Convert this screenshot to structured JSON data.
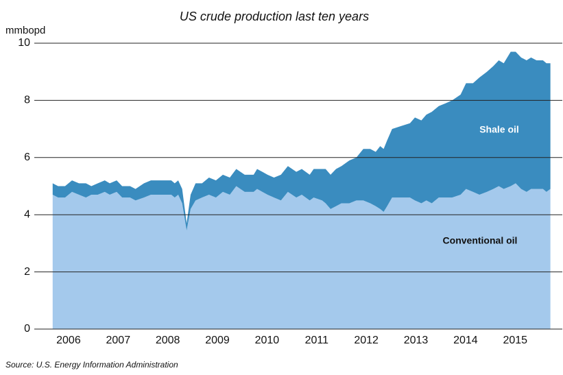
{
  "chart_data": {
    "type": "stacked_area",
    "title": "US crude production last ten years",
    "y_label": "mmbopd",
    "source": "Source: U.S. Energy Information Administration",
    "x": [
      2005.68,
      2005.79,
      2005.93,
      2006.07,
      2006.21,
      2006.35,
      2006.46,
      2006.59,
      2006.73,
      2006.83,
      2006.97,
      2007.08,
      2007.24,
      2007.35,
      2007.52,
      2007.66,
      2007.86,
      2008.07,
      2008.14,
      2008.21,
      2008.29,
      2008.38,
      2008.46,
      2008.56,
      2008.69,
      2008.83,
      2008.97,
      2009.11,
      2009.25,
      2009.38,
      2009.55,
      2009.73,
      2009.8,
      2010.01,
      2010.14,
      2010.28,
      2010.42,
      2010.59,
      2010.7,
      2010.86,
      2010.94,
      2011.11,
      2011.18,
      2011.28,
      2011.39,
      2011.5,
      2011.66,
      2011.8,
      2011.94,
      2012.08,
      2012.19,
      2012.28,
      2012.35,
      2012.42,
      2012.52,
      2012.7,
      2012.88,
      2012.98,
      2013.11,
      2013.21,
      2013.32,
      2013.46,
      2013.6,
      2013.73,
      2013.9,
      2014.01,
      2014.15,
      2014.28,
      2014.43,
      2014.56,
      2014.67,
      2014.77,
      2014.91,
      2015.01,
      2015.12,
      2015.23,
      2015.32,
      2015.43,
      2015.56,
      2015.63,
      2015.71
    ],
    "series": [
      {
        "name": "Conventional oil",
        "color": "#a4c9ec",
        "values": [
          4.7,
          4.6,
          4.6,
          4.8,
          4.7,
          4.6,
          4.7,
          4.7,
          4.8,
          4.7,
          4.8,
          4.6,
          4.6,
          4.5,
          4.6,
          4.7,
          4.7,
          4.7,
          4.6,
          4.7,
          4.4,
          3.45,
          4.2,
          4.5,
          4.6,
          4.7,
          4.6,
          4.8,
          4.7,
          5.0,
          4.8,
          4.8,
          4.9,
          4.7,
          4.6,
          4.5,
          4.8,
          4.6,
          4.7,
          4.5,
          4.6,
          4.5,
          4.4,
          4.2,
          4.3,
          4.4,
          4.4,
          4.5,
          4.5,
          4.4,
          4.3,
          4.2,
          4.1,
          4.3,
          4.6,
          4.6,
          4.6,
          4.5,
          4.4,
          4.5,
          4.4,
          4.6,
          4.6,
          4.6,
          4.7,
          4.9,
          4.8,
          4.7,
          4.8,
          4.9,
          5.0,
          4.9,
          5.0,
          5.1,
          4.9,
          4.8,
          4.9,
          4.9,
          4.9,
          4.8,
          4.9
        ]
      },
      {
        "name": "Shale oil",
        "color": "#3a8cbf",
        "values": [
          0.4,
          0.4,
          0.4,
          0.4,
          0.4,
          0.5,
          0.3,
          0.4,
          0.4,
          0.4,
          0.4,
          0.4,
          0.4,
          0.4,
          0.5,
          0.5,
          0.5,
          0.5,
          0.5,
          0.5,
          0.5,
          0.25,
          0.5,
          0.6,
          0.5,
          0.6,
          0.6,
          0.6,
          0.6,
          0.6,
          0.6,
          0.6,
          0.7,
          0.7,
          0.7,
          0.9,
          0.9,
          0.9,
          0.9,
          0.9,
          1.0,
          1.1,
          1.2,
          1.2,
          1.3,
          1.3,
          1.5,
          1.5,
          1.8,
          1.9,
          1.9,
          2.2,
          2.2,
          2.3,
          2.4,
          2.5,
          2.6,
          2.9,
          2.9,
          3.0,
          3.2,
          3.2,
          3.3,
          3.4,
          3.5,
          3.7,
          3.8,
          4.1,
          4.2,
          4.3,
          4.4,
          4.4,
          4.7,
          4.6,
          4.6,
          4.6,
          4.6,
          4.5,
          4.5,
          4.5,
          4.4
        ]
      }
    ],
    "xlim": [
      2005.31,
      2015.95
    ],
    "xticks": [
      2006,
      2007,
      2008,
      2009,
      2010,
      2011,
      2012,
      2013,
      2014,
      2015
    ],
    "ylim": [
      0,
      10
    ],
    "yticks": [
      0,
      2,
      4,
      6,
      8,
      10
    ],
    "grid": true
  }
}
